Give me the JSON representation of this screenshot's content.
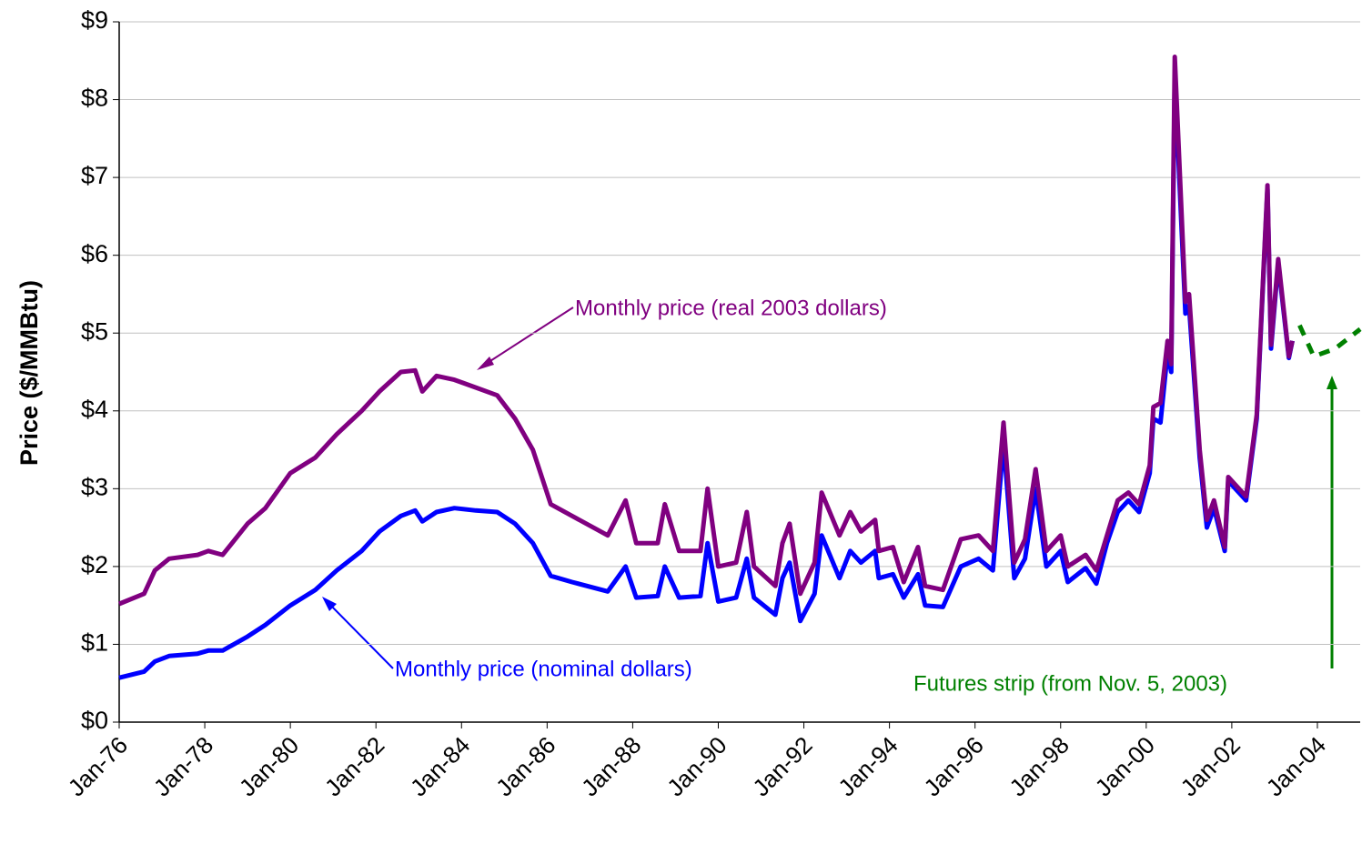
{
  "chart_data": {
    "type": "line",
    "y_label": "Price ($/MMBtu)",
    "x": [
      "1976-01",
      "1976-08",
      "1976-11",
      "1977-03",
      "1977-11",
      "1978-02",
      "1978-06",
      "1979-01",
      "1979-06",
      "1980-01",
      "1980-08",
      "1981-02",
      "1981-09",
      "1982-02",
      "1982-08",
      "1982-12",
      "1983-02",
      "1983-06",
      "1983-11",
      "1984-05",
      "1984-11",
      "1985-04",
      "1985-09",
      "1986-02",
      "1986-08",
      "1987-06",
      "1987-11",
      "1988-02",
      "1988-08",
      "1988-10",
      "1989-02",
      "1989-08",
      "1989-10",
      "1990-01",
      "1990-06",
      "1990-09",
      "1990-11",
      "1991-05",
      "1991-07",
      "1991-09",
      "1991-12",
      "1992-04",
      "1992-06",
      "1992-11",
      "1993-02",
      "1993-05",
      "1993-09",
      "1993-10",
      "1994-02",
      "1994-05",
      "1994-09",
      "1994-11",
      "1995-04",
      "1995-09",
      "1996-02",
      "1996-06",
      "1996-09",
      "1996-12",
      "1997-03",
      "1997-06",
      "1997-09",
      "1998-01",
      "1998-03",
      "1998-08",
      "1998-11",
      "1999-02",
      "1999-05",
      "1999-08",
      "1999-11",
      "2000-02",
      "2000-03",
      "2000-05",
      "2000-07",
      "2000-08",
      "2000-09",
      "2000-12",
      "2001-01",
      "2001-04",
      "2001-06",
      "2001-08",
      "2001-11",
      "2001-12",
      "2002-05",
      "2002-08",
      "2002-11",
      "2002-12",
      "2003-02",
      "2003-05",
      "2003-06"
    ],
    "series": [
      {
        "name": "Monthly price (nominal dollars)",
        "color": "#0000ff",
        "values": [
          0.57,
          0.65,
          0.78,
          0.85,
          0.88,
          0.92,
          0.92,
          1.1,
          1.25,
          1.5,
          1.7,
          1.95,
          2.2,
          2.45,
          2.65,
          2.72,
          2.58,
          2.7,
          2.75,
          2.72,
          2.7,
          2.55,
          2.3,
          1.88,
          1.8,
          1.68,
          2.0,
          1.6,
          1.62,
          2.0,
          1.6,
          1.62,
          2.3,
          1.55,
          1.6,
          2.1,
          1.6,
          1.38,
          1.85,
          2.05,
          1.3,
          1.65,
          2.4,
          1.85,
          2.2,
          2.05,
          2.2,
          1.85,
          1.9,
          1.6,
          1.9,
          1.5,
          1.48,
          2.0,
          2.1,
          1.95,
          3.6,
          1.85,
          2.1,
          3.0,
          2.0,
          2.2,
          1.8,
          1.98,
          1.78,
          2.3,
          2.7,
          2.85,
          2.7,
          3.2,
          3.9,
          3.85,
          4.75,
          4.5,
          8.3,
          5.25,
          5.35,
          3.4,
          2.5,
          2.75,
          2.2,
          3.1,
          2.85,
          3.9,
          6.85,
          4.8,
          5.9,
          4.68,
          4.9
        ]
      },
      {
        "name": "Monthly price (real 2003 dollars)",
        "color": "#800080",
        "values": [
          1.52,
          1.65,
          1.95,
          2.1,
          2.15,
          2.2,
          2.15,
          2.55,
          2.75,
          3.2,
          3.4,
          3.7,
          4.0,
          4.25,
          4.5,
          4.52,
          4.25,
          4.45,
          4.4,
          4.3,
          4.2,
          3.9,
          3.5,
          2.8,
          2.65,
          2.4,
          2.85,
          2.3,
          2.3,
          2.8,
          2.2,
          2.2,
          3.0,
          2.0,
          2.05,
          2.7,
          2.0,
          1.75,
          2.3,
          2.55,
          1.65,
          2.05,
          2.95,
          2.4,
          2.7,
          2.45,
          2.6,
          2.2,
          2.25,
          1.8,
          2.25,
          1.75,
          1.7,
          2.35,
          2.4,
          2.2,
          3.85,
          2.05,
          2.35,
          3.25,
          2.2,
          2.4,
          2.0,
          2.15,
          1.95,
          2.4,
          2.85,
          2.95,
          2.8,
          3.3,
          4.05,
          4.1,
          4.9,
          4.6,
          8.55,
          5.4,
          5.5,
          3.5,
          2.6,
          2.85,
          2.25,
          3.15,
          2.9,
          3.95,
          6.9,
          4.85,
          5.95,
          4.7,
          4.9
        ]
      },
      {
        "name": "Futures strip (from Nov. 5, 2003)",
        "color": "#008000",
        "dashed": true,
        "x": [
          "2003-08",
          "2003-12",
          "2004-06",
          "2005-01"
        ],
        "values": [
          5.1,
          4.7,
          4.8,
          5.05
        ]
      }
    ],
    "annotations": [
      {
        "text": "Monthly price (real 2003 dollars)",
        "color": "#800080"
      },
      {
        "text": "Monthly price (nominal dollars)",
        "color": "#0000ff"
      },
      {
        "text": "Futures strip (from Nov. 5, 2003)",
        "color": "#008000"
      }
    ],
    "xlim": [
      "1976-01",
      "2005-01"
    ],
    "xticks": [
      {
        "value": "1976-01",
        "label": "Jan-76"
      },
      {
        "value": "1978-01",
        "label": "Jan-78"
      },
      {
        "value": "1980-01",
        "label": "Jan-80"
      },
      {
        "value": "1982-01",
        "label": "Jan-82"
      },
      {
        "value": "1984-01",
        "label": "Jan-84"
      },
      {
        "value": "1986-01",
        "label": "Jan-86"
      },
      {
        "value": "1988-01",
        "label": "Jan-88"
      },
      {
        "value": "1990-01",
        "label": "Jan-90"
      },
      {
        "value": "1992-01",
        "label": "Jan-92"
      },
      {
        "value": "1994-01",
        "label": "Jan-94"
      },
      {
        "value": "1996-01",
        "label": "Jan-96"
      },
      {
        "value": "1998-01",
        "label": "Jan-98"
      },
      {
        "value": "2000-01",
        "label": "Jan-00"
      },
      {
        "value": "2002-01",
        "label": "Jan-02"
      },
      {
        "value": "2004-01",
        "label": "Jan-04"
      }
    ],
    "ylim": [
      0,
      9
    ],
    "yticks": [
      {
        "value": 0,
        "label": "$0"
      },
      {
        "value": 1,
        "label": "$1"
      },
      {
        "value": 2,
        "label": "$2"
      },
      {
        "value": 3,
        "label": "$3"
      },
      {
        "value": 4,
        "label": "$4"
      },
      {
        "value": 5,
        "label": "$5"
      },
      {
        "value": 6,
        "label": "$6"
      },
      {
        "value": 7,
        "label": "$7"
      },
      {
        "value": 8,
        "label": "$8"
      },
      {
        "value": 9,
        "label": "$9"
      }
    ],
    "grid": true
  }
}
